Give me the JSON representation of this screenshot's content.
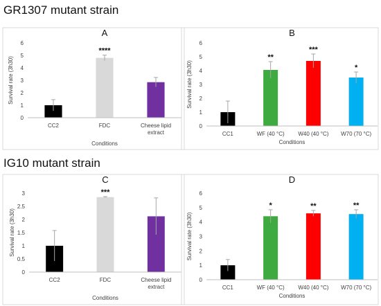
{
  "titles": [
    "GR1307 mutant strain",
    "IG10 mutant strain"
  ],
  "chart_data": [
    {
      "type": "bar",
      "title": "A",
      "xlabel": "Conditions",
      "ylabel": "Survival rate (3h30)",
      "ylim": [
        0,
        6
      ],
      "yticks": [
        0,
        1,
        2,
        3,
        4,
        5,
        6
      ],
      "grid": false,
      "categories": [
        "CC2",
        "FDC",
        "Cheese lipid extract"
      ],
      "values": [
        1.0,
        4.8,
        2.85
      ],
      "errors": [
        0.45,
        0.22,
        0.38
      ],
      "significance": [
        "",
        "****",
        ""
      ],
      "colors": [
        "#000000",
        "#d9d9d9",
        "#7030a0"
      ]
    },
    {
      "type": "bar",
      "title": "B",
      "xlabel": "Conditions",
      "ylabel": "Survival rate (3h30)",
      "ylim": [
        0,
        6
      ],
      "yticks": [
        0,
        1,
        2,
        3,
        4,
        5,
        6
      ],
      "grid": false,
      "categories": [
        "CC1",
        "WF (40 °C)",
        "W40 (40 °C)",
        "W70 (70 °C)"
      ],
      "values": [
        1.0,
        4.05,
        4.7,
        3.5
      ],
      "errors": [
        0.8,
        0.6,
        0.5,
        0.4
      ],
      "significance": [
        "",
        "**",
        "***",
        "*"
      ],
      "colors": [
        "#000000",
        "#3faa3f",
        "#ff0000",
        "#00b0f0"
      ]
    },
    {
      "type": "bar",
      "title": "C",
      "xlabel": "Conditions",
      "ylabel": "Survival rate (3h30)",
      "ylim": [
        0,
        3
      ],
      "yticks": [
        0,
        0.5,
        1,
        1.5,
        2,
        2.5,
        3
      ],
      "grid": false,
      "categories": [
        "CC2",
        "FDC",
        "Cheese lipid extract"
      ],
      "values": [
        1.0,
        2.85,
        2.12
      ],
      "errors": [
        0.58,
        0.02,
        0.7
      ],
      "significance": [
        "",
        "***",
        ""
      ],
      "colors": [
        "#000000",
        "#d9d9d9",
        "#7030a0"
      ]
    },
    {
      "type": "bar",
      "title": "D",
      "xlabel": "Conditions",
      "ylabel": "Survival rate (3h30)",
      "ylim": [
        0,
        6
      ],
      "yticks": [
        0,
        1,
        2,
        3,
        4,
        5,
        6
      ],
      "grid": false,
      "categories": [
        "CC1",
        "WF (40 °C)",
        "W40 (40 °C)",
        "W70 (70 °C)"
      ],
      "values": [
        1.0,
        4.4,
        4.6,
        4.55
      ],
      "errors": [
        0.4,
        0.45,
        0.2,
        0.3
      ],
      "significance": [
        "",
        "*",
        "**",
        "**"
      ],
      "colors": [
        "#000000",
        "#3faa3f",
        "#ff0000",
        "#00b0f0"
      ]
    }
  ]
}
